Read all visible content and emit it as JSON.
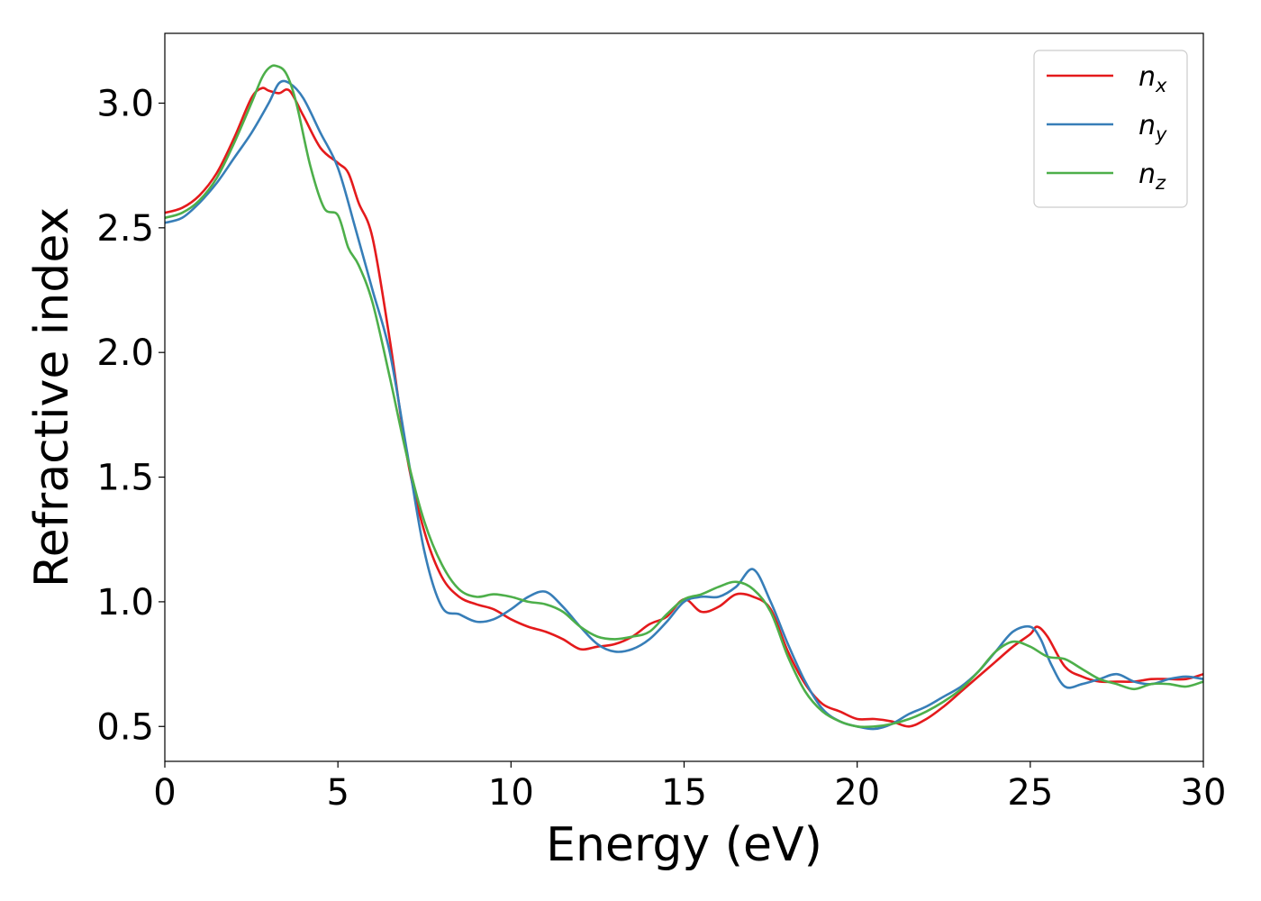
{
  "chart_data": {
    "type": "line",
    "title": "",
    "xlabel": "Energy (eV)",
    "ylabel": "Refractive index",
    "xlim": [
      0,
      30
    ],
    "ylim": [
      0.36,
      3.28
    ],
    "xticks": [
      0,
      5,
      10,
      15,
      20,
      25,
      30
    ],
    "yticks": [
      0.5,
      1.0,
      1.5,
      2.0,
      2.5,
      3.0
    ],
    "xtick_labels": [
      "0",
      "5",
      "10",
      "15",
      "20",
      "25",
      "30"
    ],
    "ytick_labels": [
      "0.5",
      "1.0",
      "1.5",
      "2.0",
      "2.5",
      "3.0"
    ],
    "grid": false,
    "legend_position": "top-right",
    "series": [
      {
        "name": "n_x",
        "label_base": "n",
        "label_sub": "x",
        "color": "#e41a1c",
        "x": [
          0,
          0.5,
          1,
          1.5,
          2,
          2.5,
          2.8,
          3.0,
          3.3,
          3.6,
          4.0,
          4.5,
          5.0,
          5.3,
          5.6,
          6.0,
          6.5,
          7.0,
          7.5,
          8.0,
          8.5,
          9.0,
          9.5,
          10,
          10.5,
          11,
          11.5,
          12,
          12.5,
          13,
          13.5,
          14,
          14.5,
          15,
          15.5,
          16,
          16.5,
          17,
          17.5,
          18,
          18.5,
          19,
          19.5,
          20,
          20.5,
          21,
          21.5,
          22,
          22.5,
          23,
          23.5,
          24,
          24.5,
          25,
          25.2,
          25.5,
          26,
          26.5,
          27,
          27.5,
          28,
          28.5,
          29,
          29.5,
          30
        ],
        "y": [
          2.56,
          2.58,
          2.63,
          2.72,
          2.86,
          3.02,
          3.06,
          3.05,
          3.04,
          3.05,
          2.95,
          2.82,
          2.76,
          2.72,
          2.6,
          2.46,
          2.05,
          1.58,
          1.28,
          1.1,
          1.02,
          0.99,
          0.97,
          0.93,
          0.9,
          0.88,
          0.85,
          0.81,
          0.82,
          0.83,
          0.86,
          0.91,
          0.94,
          1.01,
          0.96,
          0.98,
          1.03,
          1.02,
          0.97,
          0.8,
          0.67,
          0.59,
          0.56,
          0.53,
          0.53,
          0.52,
          0.5,
          0.53,
          0.58,
          0.64,
          0.7,
          0.76,
          0.82,
          0.87,
          0.9,
          0.86,
          0.74,
          0.7,
          0.68,
          0.68,
          0.68,
          0.69,
          0.69,
          0.69,
          0.71
        ]
      },
      {
        "name": "n_y",
        "label_base": "n",
        "label_sub": "y",
        "color": "#377eb8",
        "x": [
          0,
          0.5,
          1,
          1.5,
          2,
          2.5,
          3.0,
          3.3,
          3.6,
          4.0,
          4.5,
          5.0,
          5.5,
          6.0,
          6.5,
          7.0,
          7.5,
          8.0,
          8.5,
          9.0,
          9.5,
          10,
          10.5,
          11,
          11.5,
          12,
          12.5,
          13,
          13.5,
          14,
          14.5,
          15,
          15.5,
          16,
          16.5,
          17,
          17.5,
          18,
          18.5,
          19,
          19.5,
          20,
          20.5,
          21,
          21.5,
          22,
          22.5,
          23,
          23.5,
          24,
          24.5,
          25,
          25.3,
          25.6,
          26,
          26.5,
          27,
          27.5,
          28,
          28.5,
          29,
          29.5,
          30
        ],
        "y": [
          2.52,
          2.54,
          2.6,
          2.68,
          2.78,
          2.88,
          3.0,
          3.08,
          3.08,
          3.02,
          2.88,
          2.74,
          2.5,
          2.25,
          2.0,
          1.6,
          1.2,
          0.98,
          0.95,
          0.92,
          0.93,
          0.97,
          1.02,
          1.04,
          0.98,
          0.9,
          0.83,
          0.8,
          0.81,
          0.85,
          0.92,
          1.0,
          1.02,
          1.02,
          1.06,
          1.13,
          1.0,
          0.83,
          0.68,
          0.57,
          0.52,
          0.5,
          0.49,
          0.51,
          0.55,
          0.58,
          0.62,
          0.66,
          0.72,
          0.8,
          0.88,
          0.9,
          0.85,
          0.75,
          0.66,
          0.67,
          0.69,
          0.71,
          0.68,
          0.67,
          0.69,
          0.7,
          0.69
        ]
      },
      {
        "name": "n_z",
        "label_base": "n",
        "label_sub": "z",
        "color": "#4daf4a",
        "x": [
          0,
          0.5,
          1,
          1.5,
          2,
          2.5,
          2.8,
          3.0,
          3.2,
          3.5,
          3.8,
          4.2,
          4.6,
          5.0,
          5.3,
          5.6,
          6.0,
          6.5,
          7.0,
          7.5,
          8.0,
          8.5,
          9.0,
          9.5,
          10,
          10.5,
          11,
          11.5,
          12,
          12.5,
          13,
          13.5,
          14,
          14.5,
          15,
          15.5,
          16,
          16.5,
          17,
          17.5,
          18,
          18.5,
          19,
          19.5,
          20,
          20.5,
          21,
          21.5,
          22,
          22.5,
          23,
          23.5,
          24,
          24.5,
          25,
          25.5,
          26,
          26.5,
          27,
          27.5,
          28,
          28.5,
          29,
          29.5,
          30
        ],
        "y": [
          2.54,
          2.56,
          2.61,
          2.7,
          2.84,
          3.0,
          3.1,
          3.14,
          3.15,
          3.12,
          3.0,
          2.75,
          2.58,
          2.55,
          2.42,
          2.35,
          2.2,
          1.9,
          1.58,
          1.32,
          1.15,
          1.05,
          1.02,
          1.03,
          1.02,
          1.0,
          0.99,
          0.96,
          0.9,
          0.86,
          0.85,
          0.86,
          0.88,
          0.95,
          1.01,
          1.03,
          1.06,
          1.08,
          1.05,
          0.96,
          0.78,
          0.64,
          0.56,
          0.52,
          0.5,
          0.5,
          0.51,
          0.53,
          0.56,
          0.6,
          0.65,
          0.72,
          0.8,
          0.84,
          0.82,
          0.78,
          0.77,
          0.73,
          0.69,
          0.67,
          0.65,
          0.67,
          0.67,
          0.66,
          0.68
        ]
      }
    ]
  }
}
